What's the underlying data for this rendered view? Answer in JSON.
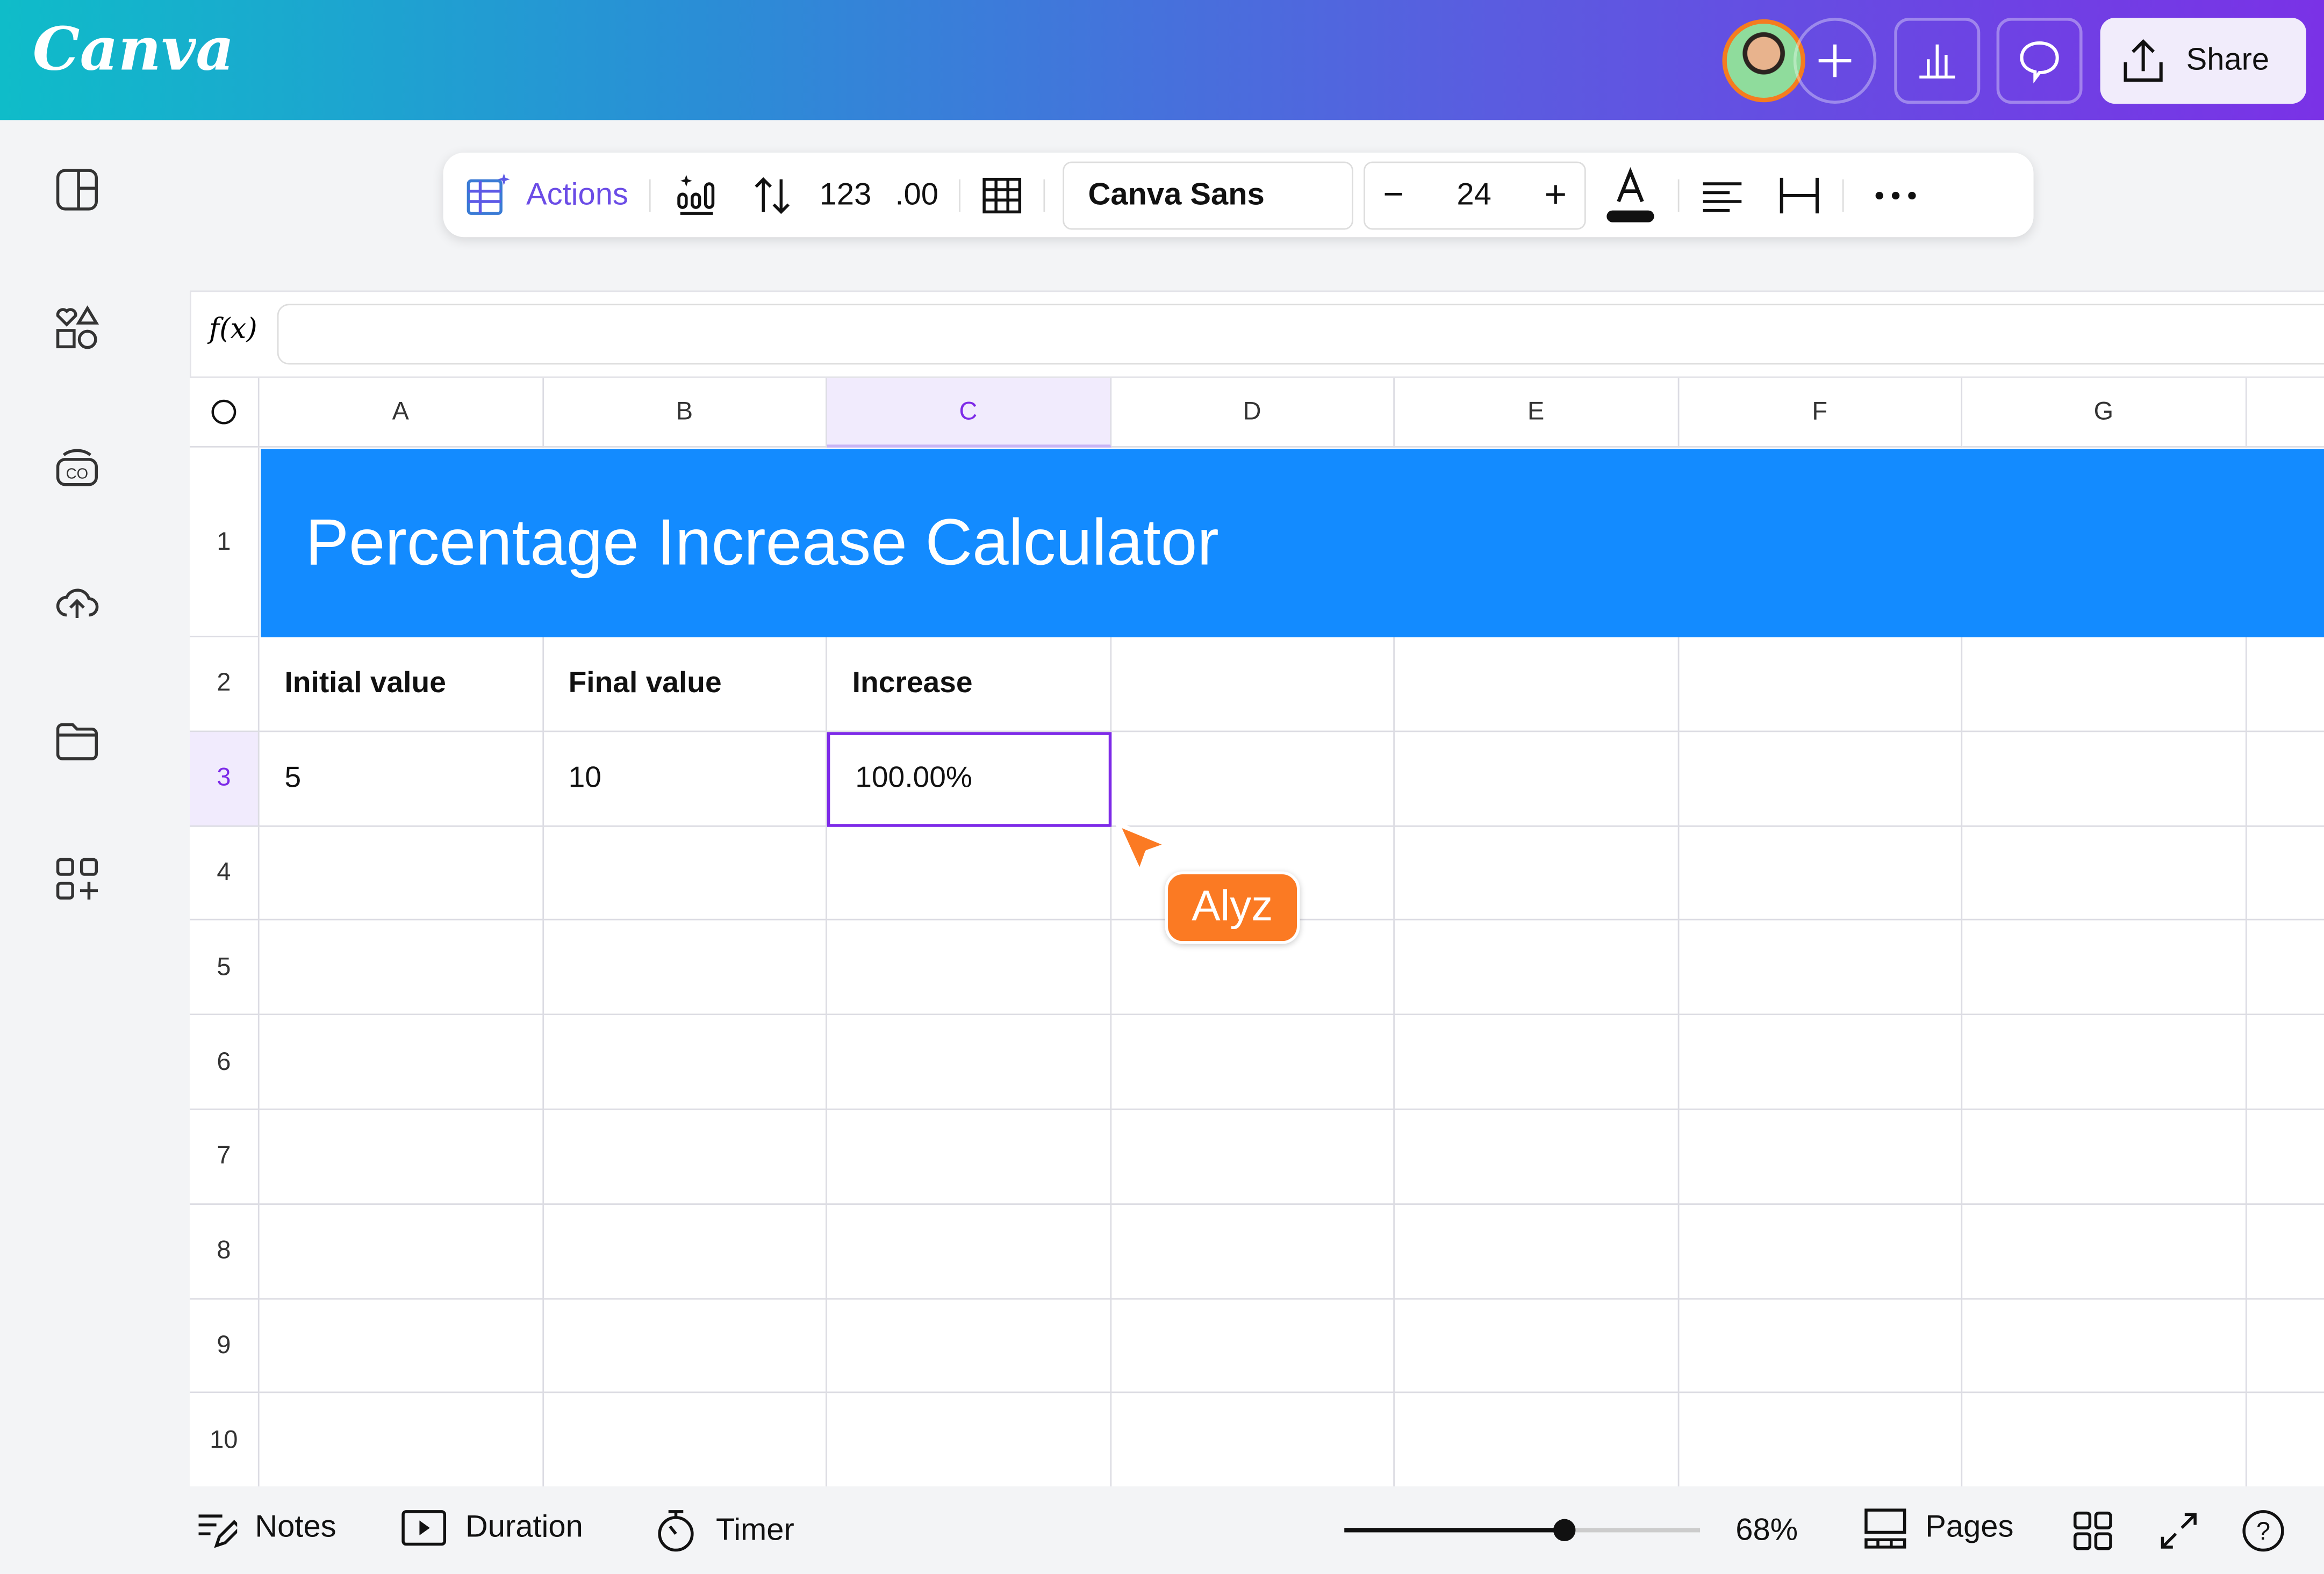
{
  "app": {
    "logo": "Canva",
    "share_label": "Share",
    "brand_gradient": [
      "#0fbcc9",
      "#7a32e6"
    ]
  },
  "toolbar": {
    "actions_label": "Actions",
    "number_format": "123",
    "decimal_format": ".00",
    "font": "Canva Sans",
    "font_size": "24",
    "accent": "#6b4ce6"
  },
  "formula_bar": {
    "label": "f(x)",
    "value": ""
  },
  "sheet": {
    "columns": [
      "A",
      "B",
      "C",
      "D",
      "E",
      "F",
      "G",
      ""
    ],
    "rows": [
      "1",
      "2",
      "3",
      "4",
      "5",
      "6",
      "7",
      "8",
      "9",
      "10"
    ],
    "selected_column": "C",
    "selected_row": "3",
    "title": "Percentage Increase Calculator",
    "title_bg": "#138bff",
    "headers": [
      "Initial value",
      "Final value",
      "Increase"
    ],
    "values": [
      "5",
      "10",
      "100.00%"
    ],
    "selection_color": "#7d2ae8"
  },
  "cursor": {
    "user": "Alyz",
    "color": "#fb7a23"
  },
  "bottom": {
    "notes": "Notes",
    "duration": "Duration",
    "timer": "Timer",
    "zoom": "68%",
    "zoom_fraction": 0.68,
    "pages": "Pages"
  }
}
